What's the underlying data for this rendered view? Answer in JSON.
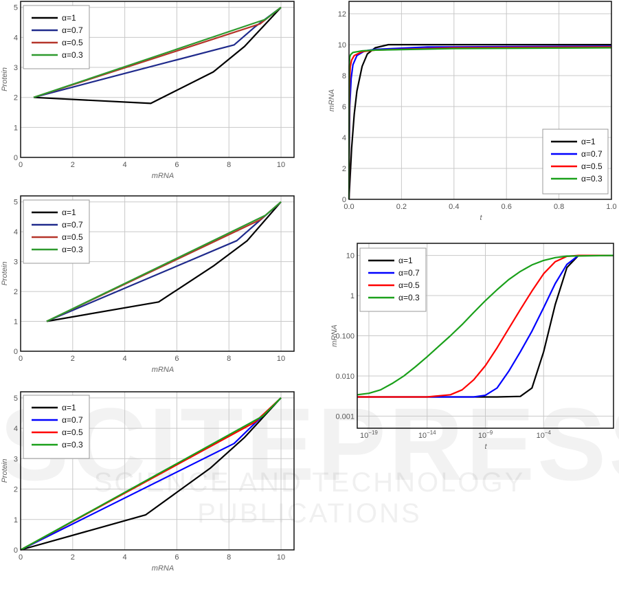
{
  "watermark": {
    "main": "SCITEPRESS",
    "sub": "SCIENCE AND TECHNOLOGY PUBLICATIONS"
  },
  "chart_data": [
    {
      "type": "line",
      "xlabel": "mRNA",
      "ylabel": "Protein",
      "xlim": [
        0,
        10.5
      ],
      "ylim": [
        0,
        5.2
      ],
      "xticks": [
        0,
        2,
        4,
        6,
        8,
        10
      ],
      "yticks": [
        0,
        1,
        2,
        3,
        4,
        5
      ],
      "grid": true,
      "legend": "top-left",
      "series": [
        {
          "name": "α=1",
          "color": "#000000",
          "x": [
            0.5,
            5,
            7.4,
            8.6,
            10
          ],
          "y": [
            2,
            1.8,
            2.85,
            3.7,
            5
          ]
        },
        {
          "name": "α=0.7",
          "color": "#1f2a8c",
          "x": [
            0.5,
            4,
            8.2,
            9,
            10
          ],
          "y": [
            2,
            2.8,
            3.75,
            4.35,
            5
          ]
        },
        {
          "name": "α=0.5",
          "color": "#b5352a",
          "x": [
            0.5,
            9.2,
            10
          ],
          "y": [
            2,
            4.45,
            5
          ]
        },
        {
          "name": "α=0.3",
          "color": "#2e9a2e",
          "x": [
            0.5,
            9.4,
            10
          ],
          "y": [
            2,
            4.6,
            5
          ]
        }
      ]
    },
    {
      "type": "line",
      "xlabel": "mRNA",
      "ylabel": "Protein",
      "xlim": [
        0,
        10.5
      ],
      "ylim": [
        0,
        5.2
      ],
      "xticks": [
        0,
        2,
        4,
        6,
        8,
        10
      ],
      "yticks": [
        0,
        1,
        2,
        3,
        4,
        5
      ],
      "grid": true,
      "legend": "top-left",
      "series": [
        {
          "name": "α=1",
          "color": "#000000",
          "x": [
            1,
            5.3,
            7.4,
            8.7,
            10
          ],
          "y": [
            1,
            1.65,
            2.85,
            3.7,
            5
          ]
        },
        {
          "name": "α=0.7",
          "color": "#1f2a8c",
          "x": [
            1,
            8.3,
            10
          ],
          "y": [
            1,
            3.7,
            5
          ]
        },
        {
          "name": "α=0.5",
          "color": "#b5352a",
          "x": [
            1,
            9.2,
            10
          ],
          "y": [
            1,
            4.4,
            5
          ]
        },
        {
          "name": "α=0.3",
          "color": "#2e9a2e",
          "x": [
            1,
            9.4,
            10
          ],
          "y": [
            1,
            4.55,
            5
          ]
        }
      ]
    },
    {
      "type": "line",
      "xlabel": "mRNA",
      "ylabel": "Protein",
      "xlim": [
        0,
        10.5
      ],
      "ylim": [
        0,
        5.2
      ],
      "xticks": [
        0,
        2,
        4,
        6,
        8,
        10
      ],
      "yticks": [
        0,
        1,
        2,
        3,
        4,
        5
      ],
      "grid": true,
      "legend": "top-left",
      "series": [
        {
          "name": "α=1",
          "color": "#000000",
          "x": [
            0,
            4.8,
            7.3,
            8.6,
            10
          ],
          "y": [
            0,
            1.15,
            2.7,
            3.7,
            5
          ]
        },
        {
          "name": "α=0.7",
          "color": "#0000ff",
          "x": [
            0,
            8.2,
            10
          ],
          "y": [
            0,
            3.5,
            5
          ]
        },
        {
          "name": "α=0.5",
          "color": "#ff0000",
          "x": [
            0,
            9,
            10
          ],
          "y": [
            0,
            4.2,
            5
          ]
        },
        {
          "name": "α=0.3",
          "color": "#1aa01a",
          "x": [
            0,
            9.3,
            10
          ],
          "y": [
            0,
            4.4,
            5
          ]
        }
      ]
    },
    {
      "type": "line",
      "xlabel": "t",
      "ylabel": "mRNA",
      "xlim": [
        0,
        1
      ],
      "ylim": [
        0,
        12.8
      ],
      "xticks": [
        "0.0",
        "0.2",
        "0.4",
        "0.6",
        "0.8",
        "1.0"
      ],
      "xtickvals": [
        0,
        0.2,
        0.4,
        0.6,
        0.8,
        1
      ],
      "yticks": [
        0,
        2,
        4,
        6,
        8,
        10,
        12
      ],
      "grid": true,
      "legend": "bottom-right",
      "series": [
        {
          "name": "α=1",
          "color": "#000000",
          "x": [
            0,
            0.01,
            0.02,
            0.03,
            0.05,
            0.07,
            0.1,
            0.15,
            1
          ],
          "y": [
            0,
            3.3,
            5.5,
            7,
            8.6,
            9.4,
            9.8,
            10,
            10
          ]
        },
        {
          "name": "α=0.7",
          "color": "#0000ff",
          "x": [
            0,
            0.003,
            0.008,
            0.015,
            0.03,
            0.06,
            0.1,
            0.3,
            1
          ],
          "y": [
            0,
            6,
            7.8,
            8.7,
            9.3,
            9.6,
            9.7,
            9.85,
            9.9
          ]
        },
        {
          "name": "α=0.5",
          "color": "#ff0000",
          "x": [
            0,
            0.002,
            0.005,
            0.01,
            0.02,
            0.05,
            0.1,
            0.4,
            1
          ],
          "y": [
            0,
            7.5,
            8.6,
            9,
            9.3,
            9.55,
            9.65,
            9.8,
            9.85
          ]
        },
        {
          "name": "α=0.3",
          "color": "#1aa01a",
          "x": [
            0,
            0.001,
            0.003,
            0.006,
            0.015,
            0.05,
            0.1,
            0.4,
            1
          ],
          "y": [
            0,
            8.6,
            9.2,
            9.35,
            9.5,
            9.6,
            9.65,
            9.75,
            9.8
          ]
        }
      ]
    },
    {
      "type": "line",
      "xlabel": "t",
      "ylabel": "mRNA",
      "xscale": "log",
      "yscale": "log",
      "xlim": [
        1e-20,
        100.0
      ],
      "ylim": [
        0.0005,
        20
      ],
      "xticks": [
        "10^-19",
        "10^-14",
        "10^-9",
        "10^-4"
      ],
      "xtickvals": [
        1e-19,
        1e-14,
        1e-09,
        0.0001
      ],
      "yticks": [
        "0.001",
        "0.010",
        "0.100",
        "1",
        "10"
      ],
      "ytickvals": [
        0.001,
        0.01,
        0.1,
        1,
        10
      ],
      "grid": true,
      "legend": "top-left",
      "series": [
        {
          "name": "α=1",
          "color": "#000000",
          "x": [
            1e-20,
            1e-08,
            1e-06,
            1e-05,
            0.0001,
            0.001,
            0.01,
            0.1,
            100.0
          ],
          "y": [
            0.003,
            0.003,
            0.0031,
            0.005,
            0.04,
            0.6,
            5,
            10,
            10
          ]
        },
        {
          "name": "α=0.7",
          "color": "#0000ff",
          "x": [
            1e-20,
            1e-10,
            1e-09,
            1e-08,
            1e-07,
            1e-06,
            1e-05,
            0.0001,
            0.001,
            0.01,
            0.1,
            100.0
          ],
          "y": [
            0.003,
            0.003,
            0.0033,
            0.005,
            0.013,
            0.04,
            0.13,
            0.5,
            2,
            6,
            10,
            10
          ]
        },
        {
          "name": "α=0.5",
          "color": "#ff0000",
          "x": [
            1e-20,
            1e-14,
            1e-12,
            1e-11,
            1e-10,
            1e-09,
            1e-08,
            1e-07,
            1e-06,
            1e-05,
            0.0001,
            0.001,
            0.01,
            0.1,
            100.0
          ],
          "y": [
            0.003,
            0.003,
            0.0034,
            0.0045,
            0.008,
            0.018,
            0.05,
            0.15,
            0.45,
            1.3,
            3.5,
            7,
            9.5,
            10,
            10
          ]
        },
        {
          "name": "α=0.3",
          "color": "#1aa01a",
          "x": [
            1e-20,
            1e-19,
            1e-18,
            1e-17,
            1e-16,
            1e-15,
            1e-14,
            1e-13,
            1e-12,
            1e-11,
            1e-10,
            1e-09,
            1e-08,
            1e-07,
            1e-06,
            1e-05,
            0.0001,
            0.001,
            0.01,
            100.0
          ],
          "y": [
            0.0034,
            0.0037,
            0.0045,
            0.0065,
            0.01,
            0.017,
            0.03,
            0.055,
            0.1,
            0.19,
            0.38,
            0.75,
            1.4,
            2.5,
            4,
            5.8,
            7.5,
            8.8,
            9.6,
            10
          ]
        }
      ]
    }
  ]
}
